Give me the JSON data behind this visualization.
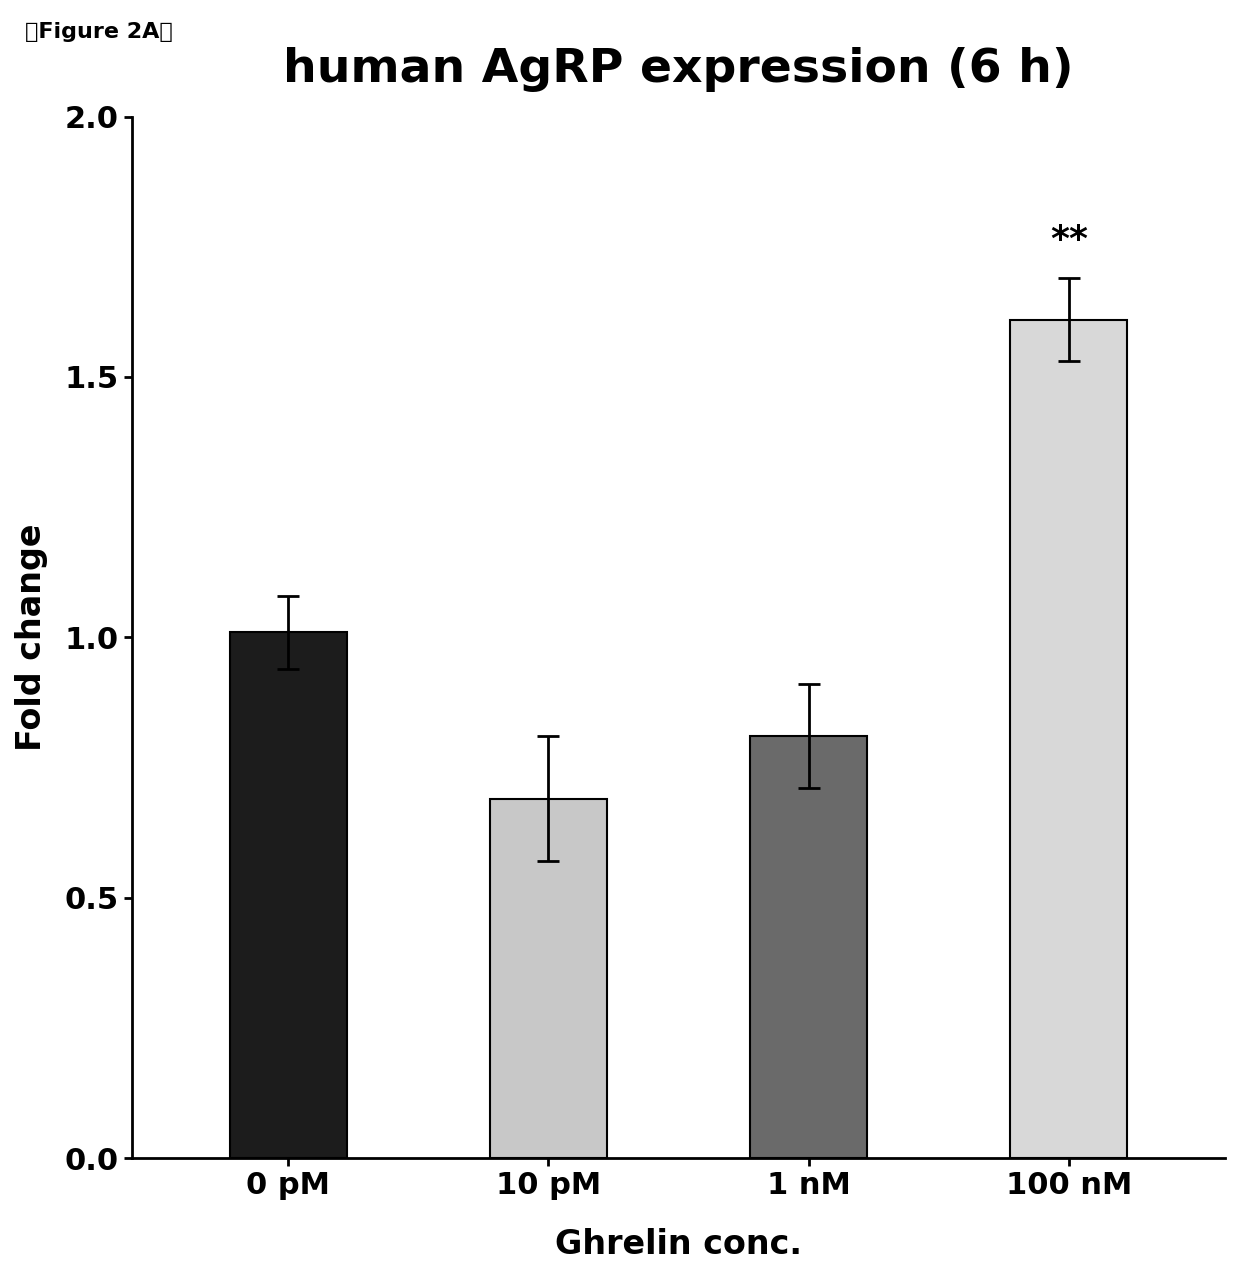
{
  "title": "human AgRP expression (6 h)",
  "xlabel": "Ghrelin conc.",
  "ylabel": "Fold change",
  "categories": [
    "0 pM",
    "10 pM",
    "1 nM",
    "100 nM"
  ],
  "values": [
    1.01,
    0.69,
    0.81,
    1.61
  ],
  "errors": [
    0.07,
    0.12,
    0.1,
    0.08
  ],
  "bar_colors": [
    "#1c1c1c",
    "#c8c8c8",
    "#6a6a6a",
    "#d8d8d8"
  ],
  "bar_edge_colors": [
    "#000000",
    "#000000",
    "#000000",
    "#000000"
  ],
  "ylim": [
    0.0,
    2.0
  ],
  "yticks": [
    0.0,
    0.5,
    1.0,
    1.5,
    2.0
  ],
  "significance": {
    "bar_index": 3,
    "label": "**"
  },
  "figure_label": "『Figure 2A』",
  "title_fontsize": 34,
  "axis_label_fontsize": 24,
  "tick_fontsize": 22,
  "bar_width": 0.45,
  "figure_label_fontsize": 16,
  "sig_fontsize": 26
}
